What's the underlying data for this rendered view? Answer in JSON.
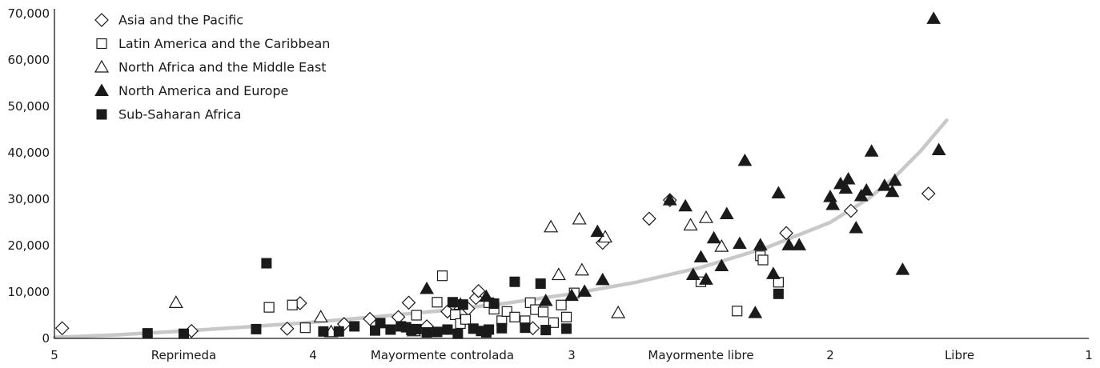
{
  "chart_data": {
    "type": "scatter",
    "title": "",
    "xlabel": "",
    "ylabel": "",
    "x_direction": "reversed",
    "xlim": [
      5,
      1
    ],
    "ylim": [
      0,
      70000
    ],
    "grid": false,
    "legend_position": "top-left",
    "y_ticks": [
      {
        "value": 0,
        "label": "0"
      },
      {
        "value": 10000,
        "label": "10,000"
      },
      {
        "value": 20000,
        "label": "20,000"
      },
      {
        "value": 30000,
        "label": "30,000"
      },
      {
        "value": 40000,
        "label": "40,000"
      },
      {
        "value": 50000,
        "label": "50,000"
      },
      {
        "value": 60000,
        "label": "60,000"
      },
      {
        "value": 70000,
        "label": "70,000"
      }
    ],
    "x_ticks": [
      {
        "value": 5,
        "label": "5"
      },
      {
        "value": 4,
        "label": "4"
      },
      {
        "value": 3,
        "label": "3"
      },
      {
        "value": 2,
        "label": "2"
      },
      {
        "value": 1,
        "label": "1"
      }
    ],
    "x_category_labels": [
      {
        "value": 4.5,
        "label": "Reprimeda"
      },
      {
        "value": 3.5,
        "label": "Mayormente controlada"
      },
      {
        "value": 2.5,
        "label": "Mayormente libre"
      },
      {
        "value": 1.5,
        "label": "Libre"
      }
    ],
    "series": [
      {
        "name": "Asia and the Pacific",
        "marker": "diamond-open",
        "color": "#1a1a1a",
        "points": [
          [
            4.97,
            2200
          ],
          [
            4.47,
            1600
          ],
          [
            4.1,
            2100
          ],
          [
            4.05,
            7600
          ],
          [
            3.88,
            3100
          ],
          [
            3.78,
            4200
          ],
          [
            3.67,
            4600
          ],
          [
            3.63,
            7700
          ],
          [
            3.56,
            2600
          ],
          [
            3.48,
            5800
          ],
          [
            3.4,
            6400
          ],
          [
            3.37,
            8700
          ],
          [
            3.36,
            10200
          ],
          [
            3.15,
            2200
          ],
          [
            2.88,
            20600
          ],
          [
            2.7,
            25800
          ],
          [
            2.62,
            29800
          ],
          [
            2.17,
            22700
          ],
          [
            1.92,
            27500
          ],
          [
            1.62,
            31200
          ]
        ]
      },
      {
        "name": "Latin America and the Caribbean",
        "marker": "square-open",
        "color": "#1a1a1a",
        "points": [
          [
            4.17,
            6700
          ],
          [
            4.08,
            7200
          ],
          [
            4.03,
            2300
          ],
          [
            3.6,
            5000
          ],
          [
            3.52,
            7800
          ],
          [
            3.5,
            13500
          ],
          [
            3.45,
            5100
          ],
          [
            3.43,
            3200
          ],
          [
            3.41,
            4100
          ],
          [
            3.32,
            7700
          ],
          [
            3.3,
            6300
          ],
          [
            3.27,
            3800
          ],
          [
            3.25,
            5800
          ],
          [
            3.22,
            4600
          ],
          [
            3.18,
            3800
          ],
          [
            3.16,
            7700
          ],
          [
            3.14,
            6200
          ],
          [
            3.11,
            5700
          ],
          [
            3.07,
            3400
          ],
          [
            3.04,
            7200
          ],
          [
            3.02,
            4600
          ],
          [
            2.99,
            9800
          ],
          [
            2.5,
            12200
          ],
          [
            2.36,
            5900
          ],
          [
            2.27,
            17800
          ],
          [
            2.26,
            16900
          ],
          [
            2.2,
            12100
          ]
        ]
      },
      {
        "name": "North Africa and the Middle East",
        "marker": "triangle-open",
        "color": "#1a1a1a",
        "points": [
          [
            4.53,
            7700
          ],
          [
            3.97,
            4600
          ],
          [
            3.93,
            1400
          ],
          [
            3.61,
            1600
          ],
          [
            3.43,
            7300
          ],
          [
            3.08,
            24000
          ],
          [
            3.05,
            13700
          ],
          [
            2.97,
            25700
          ],
          [
            2.96,
            14700
          ],
          [
            2.87,
            21800
          ],
          [
            2.82,
            5500
          ],
          [
            2.54,
            24400
          ],
          [
            2.48,
            26000
          ],
          [
            2.42,
            19800
          ]
        ]
      },
      {
        "name": "North America and Europe",
        "marker": "triangle-filled",
        "color": "#1a1a1a",
        "points": [
          [
            3.56,
            10700
          ],
          [
            3.33,
            9000
          ],
          [
            3.1,
            8100
          ],
          [
            3.0,
            9200
          ],
          [
            2.95,
            10100
          ],
          [
            2.9,
            23000
          ],
          [
            2.88,
            12600
          ],
          [
            2.62,
            29800
          ],
          [
            2.56,
            28500
          ],
          [
            2.53,
            13700
          ],
          [
            2.5,
            17500
          ],
          [
            2.48,
            12700
          ],
          [
            2.45,
            21600
          ],
          [
            2.42,
            15600
          ],
          [
            2.4,
            26800
          ],
          [
            2.35,
            20400
          ],
          [
            2.33,
            38300
          ],
          [
            2.29,
            5500
          ],
          [
            2.27,
            20100
          ],
          [
            2.22,
            13900
          ],
          [
            2.2,
            31300
          ],
          [
            2.16,
            20100
          ],
          [
            2.12,
            20100
          ],
          [
            2.0,
            30500
          ],
          [
            1.99,
            28800
          ],
          [
            1.96,
            33300
          ],
          [
            1.94,
            32300
          ],
          [
            1.93,
            34300
          ],
          [
            1.9,
            23800
          ],
          [
            1.88,
            30700
          ],
          [
            1.86,
            31900
          ],
          [
            1.84,
            40300
          ],
          [
            1.79,
            32900
          ],
          [
            1.76,
            31600
          ],
          [
            1.75,
            34000
          ],
          [
            1.72,
            14800
          ],
          [
            1.6,
            68900
          ],
          [
            1.58,
            40600
          ]
        ]
      },
      {
        "name": "Sub-Saharan Africa",
        "marker": "square-filled",
        "color": "#1a1a1a",
        "points": [
          [
            4.64,
            1100
          ],
          [
            4.5,
            1000
          ],
          [
            4.22,
            2000
          ],
          [
            4.18,
            16200
          ],
          [
            3.96,
            1500
          ],
          [
            3.9,
            1500
          ],
          [
            3.84,
            2600
          ],
          [
            3.76,
            1700
          ],
          [
            3.74,
            3300
          ],
          [
            3.7,
            1900
          ],
          [
            3.66,
            2600
          ],
          [
            3.64,
            2400
          ],
          [
            3.62,
            1800
          ],
          [
            3.6,
            2000
          ],
          [
            3.56,
            1300
          ],
          [
            3.52,
            1400
          ],
          [
            3.48,
            1900
          ],
          [
            3.46,
            7800
          ],
          [
            3.44,
            1000
          ],
          [
            3.42,
            7300
          ],
          [
            3.38,
            2100
          ],
          [
            3.35,
            1600
          ],
          [
            3.33,
            1300
          ],
          [
            3.32,
            1900
          ],
          [
            3.3,
            7500
          ],
          [
            3.27,
            2200
          ],
          [
            3.22,
            12200
          ],
          [
            3.18,
            2300
          ],
          [
            3.12,
            11800
          ],
          [
            3.1,
            1800
          ],
          [
            3.02,
            2100
          ],
          [
            2.2,
            9600
          ]
        ]
      }
    ],
    "trend_line": {
      "color": "#c8c8c8",
      "points": [
        [
          5,
          200
        ],
        [
          4.75,
          800
        ],
        [
          4.5,
          1600
        ],
        [
          4.25,
          2500
        ],
        [
          4,
          3500
        ],
        [
          3.75,
          4700
        ],
        [
          3.5,
          6000
        ],
        [
          3.25,
          7600
        ],
        [
          3,
          9600
        ],
        [
          2.75,
          12100
        ],
        [
          2.5,
          15300
        ],
        [
          2.25,
          19500
        ],
        [
          2,
          25000
        ],
        [
          1.85,
          30200
        ],
        [
          1.75,
          34800
        ],
        [
          1.65,
          40400
        ],
        [
          1.55,
          47000
        ]
      ]
    }
  }
}
